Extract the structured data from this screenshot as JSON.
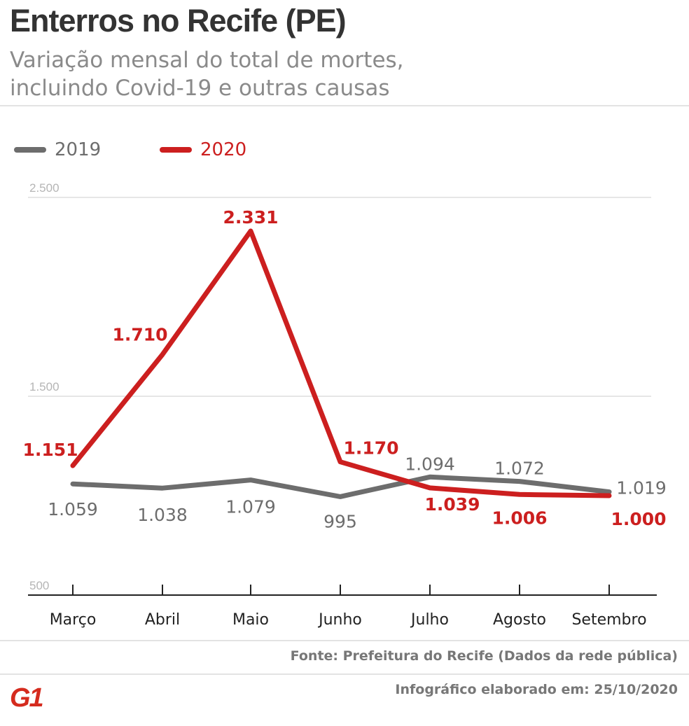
{
  "header": {
    "title": "Enterros no Recife (PE)",
    "subtitle_line1": "Variação mensal do total de mortes,",
    "subtitle_line2": "incluindo Covid-19 e outras causas"
  },
  "legend": {
    "items": [
      {
        "label": "2019",
        "color": "#6d6d6d"
      },
      {
        "label": "2020",
        "color": "#cc1f1f"
      }
    ]
  },
  "chart_data": {
    "type": "line",
    "title": "Enterros no Recife (PE)",
    "subtitle": "Variação mensal do total de mortes, incluindo Covid-19 e outras causas",
    "xlabel": "",
    "ylabel": "",
    "categories": [
      "Março",
      "Abril",
      "Maio",
      "Junho",
      "Julho",
      "Agosto",
      "Setembro"
    ],
    "ylim": [
      500,
      2500
    ],
    "yticks": [
      500,
      1500,
      2500
    ],
    "ytick_labels": [
      "500",
      "1.500",
      "2.500"
    ],
    "grid": true,
    "legend_position": "top-left",
    "series": [
      {
        "name": "2019",
        "color": "#6d6d6d",
        "values": [
          1059,
          1038,
          1079,
          995,
          1094,
          1072,
          1019
        ],
        "labels": [
          "1.059",
          "1.038",
          "1.079",
          "995",
          "1.094",
          "1.072",
          "1.019"
        ]
      },
      {
        "name": "2020",
        "color": "#cc1f1f",
        "values": [
          1151,
          1710,
          2331,
          1170,
          1039,
          1006,
          1000
        ],
        "labels": [
          "1.151",
          "1.710",
          "2.331",
          "1.170",
          "1.039",
          "1.006",
          "1.000"
        ]
      }
    ]
  },
  "footer": {
    "source": "Fonte: Prefeitura do Recife (Dados da rede pública)",
    "credit": "Infográfico elaborado em: 25/10/2020",
    "logo": "G1"
  }
}
